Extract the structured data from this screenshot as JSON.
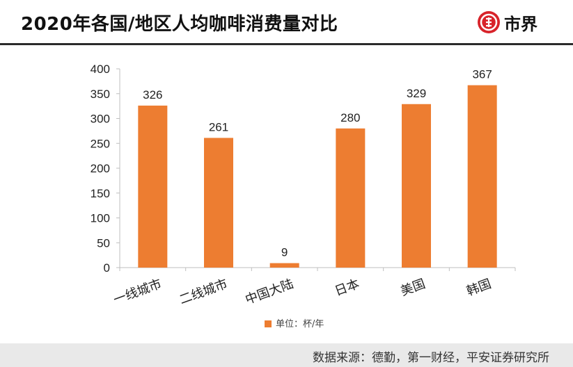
{
  "header": {
    "title": "2020年各国/地区人均咖啡消费量对比",
    "logo_text": "市界",
    "logo_icon": "shijie-logo-icon"
  },
  "colors": {
    "bar": "#ed7d31",
    "axis": "#bfbfbf",
    "brand_red": "#d8232a"
  },
  "chart_data": {
    "type": "bar",
    "categories": [
      "一线城市",
      "二线城市",
      "中国大陆",
      "日本",
      "美国",
      "韩国"
    ],
    "values": [
      326,
      261,
      9,
      280,
      329,
      367
    ],
    "ylim": [
      0,
      400
    ],
    "yticks": [
      0,
      50,
      100,
      150,
      200,
      250,
      300,
      350,
      400
    ],
    "legend": "单位：杯/年",
    "legend_position": "bottom",
    "grid": false
  },
  "footer": {
    "source": "数据来源：德勤，第一财经，平安证券研究所"
  }
}
